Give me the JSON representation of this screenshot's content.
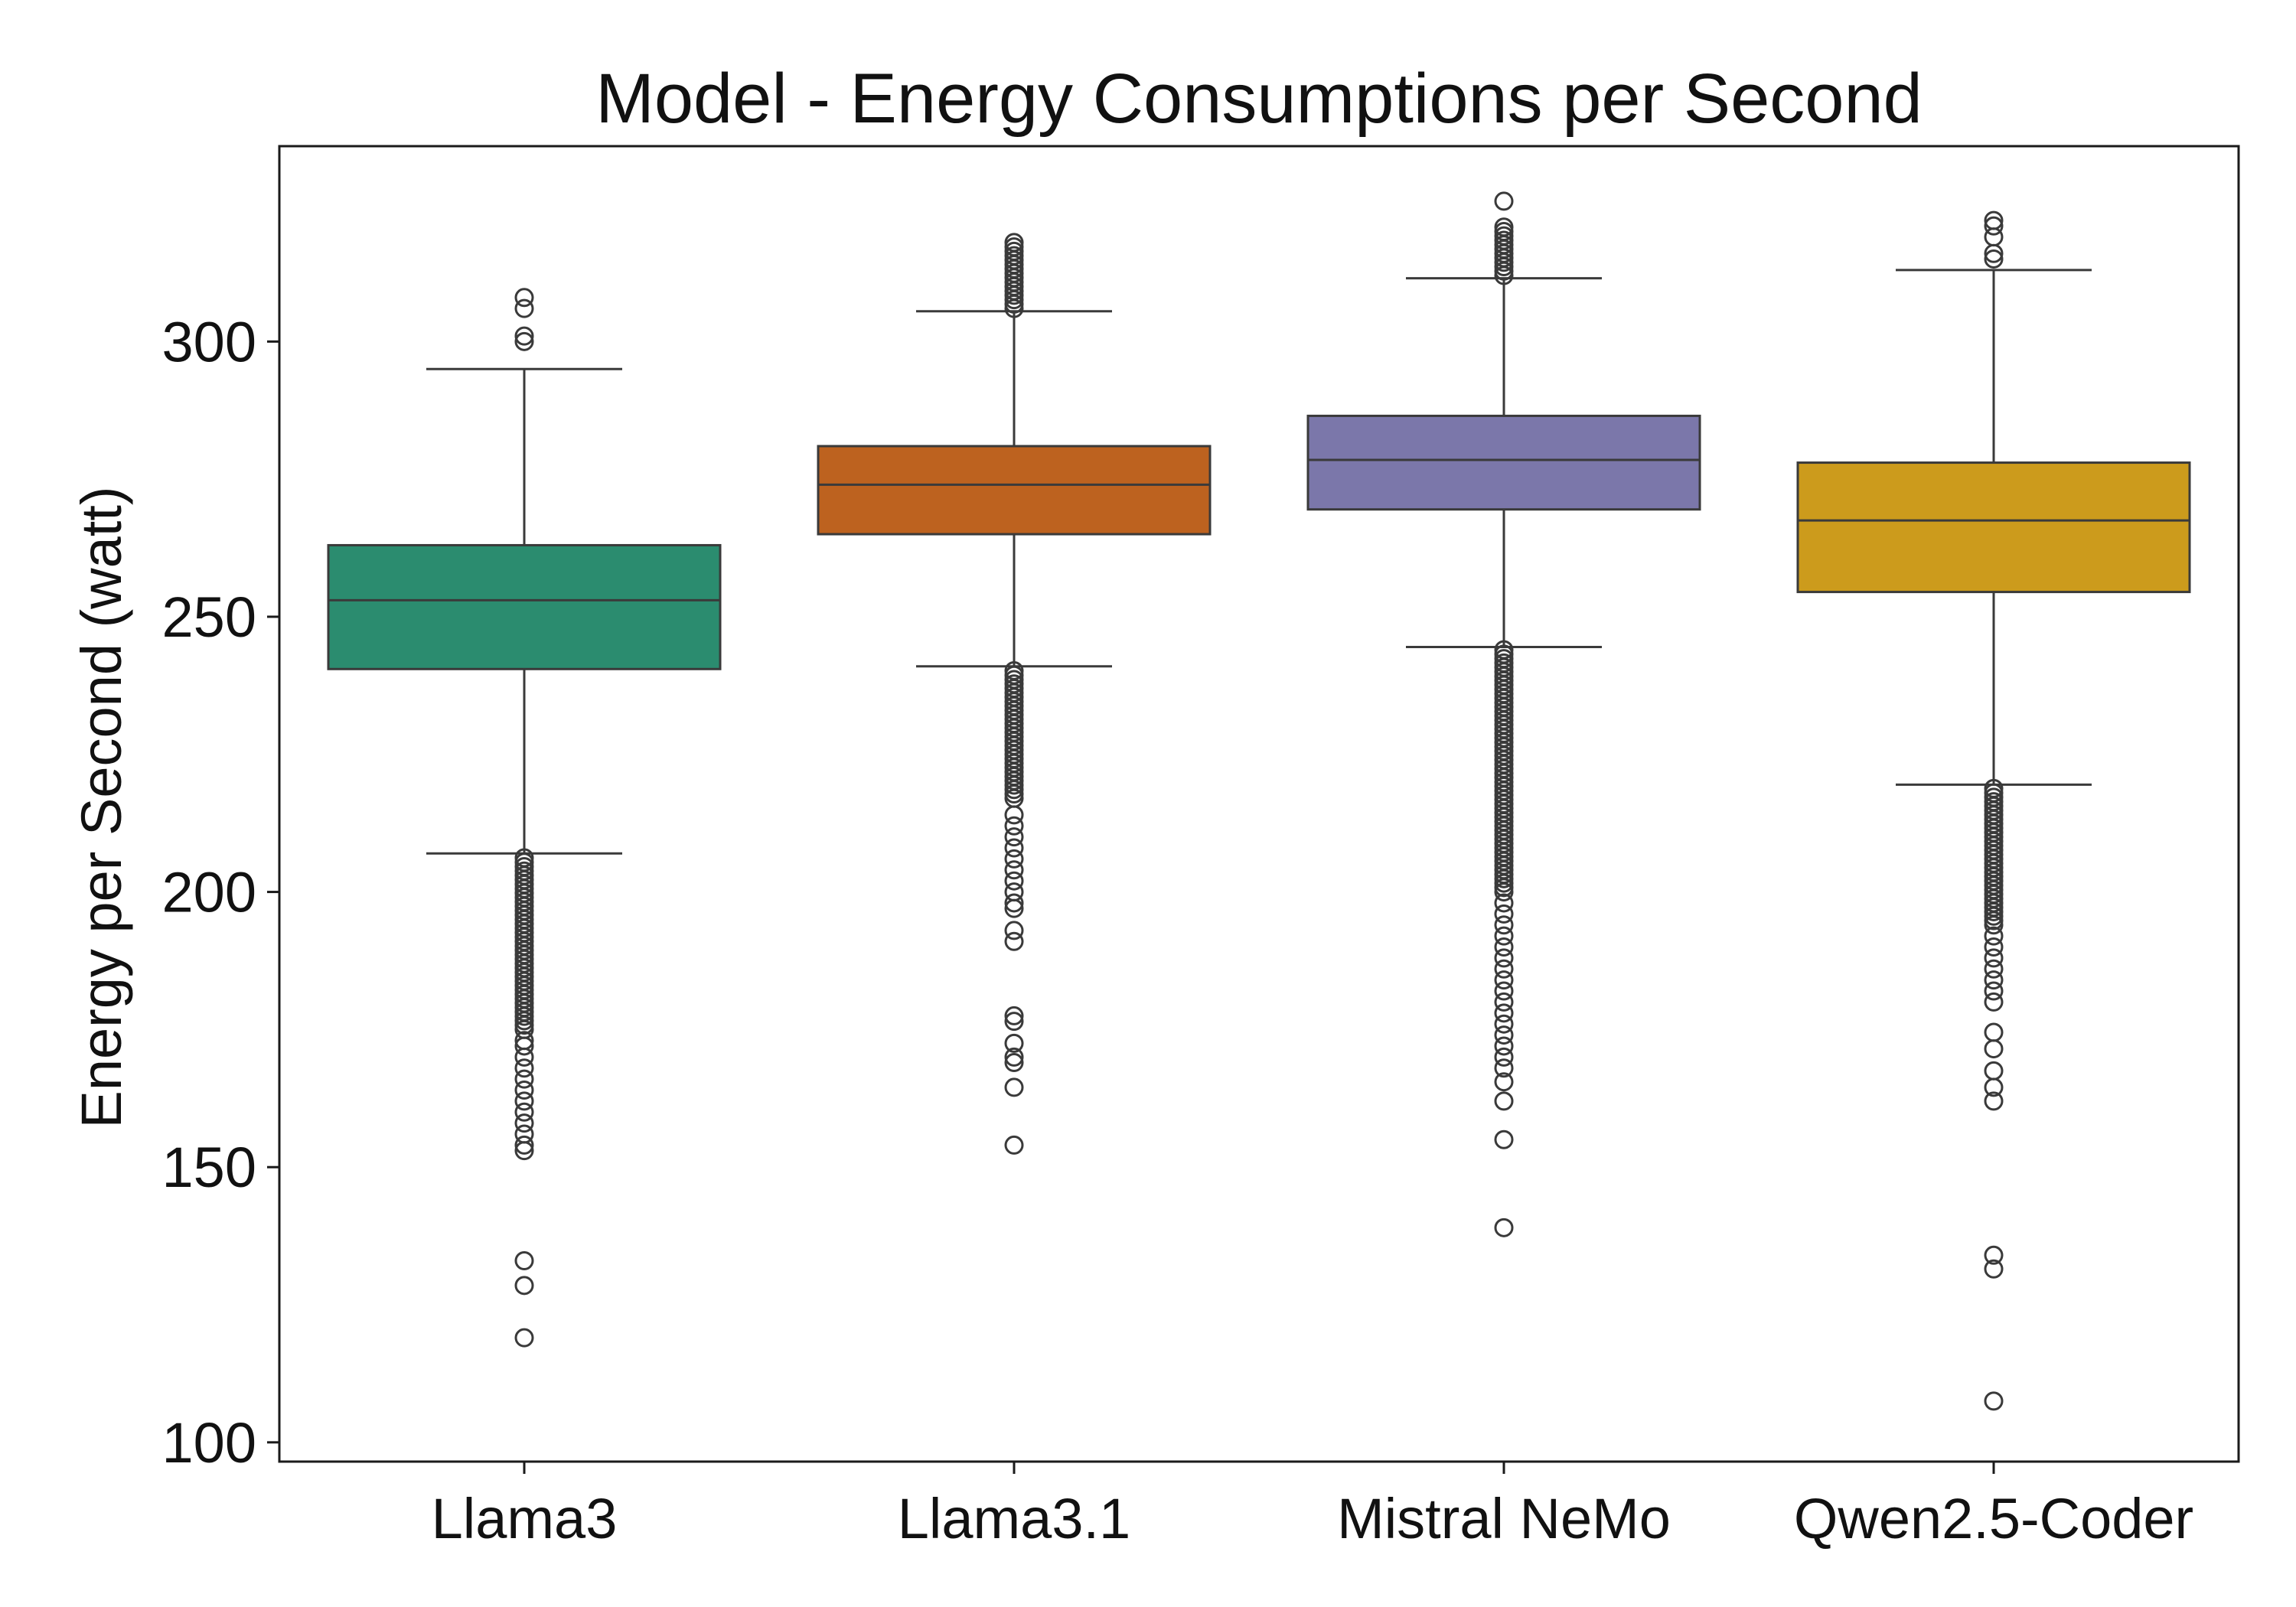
{
  "chart_data": {
    "type": "boxplot",
    "title": "Model - Energy Consumptions per Second",
    "xlabel": "",
    "ylabel": "Energy per Second (watt)",
    "ylim": [
      96.5,
      335.5
    ],
    "yticks": [
      100,
      150,
      200,
      250,
      300
    ],
    "grid": false,
    "legend": "none",
    "categories": [
      "Llama3",
      "Llama3.1",
      "Mistral NeMo",
      "Qwen2.5-Coder"
    ],
    "colors": [
      "#2b8c6f",
      "#bd621f",
      "#7b77aa",
      "#cc9b1c"
    ],
    "edge_color": "#3a3a3a",
    "series": [
      {
        "name": "Llama3",
        "whisker_low": 207,
        "q1": 240.5,
        "median": 253,
        "q3": 263,
        "whisker_high": 295,
        "outlier_band": [
          175,
          206.5
        ],
        "outliers": [
          308,
          306,
          301,
          300,
          173,
          172,
          170,
          168,
          166,
          164,
          162,
          160,
          158,
          156,
          154,
          153,
          133,
          128.5,
          119
        ]
      },
      {
        "name": "Llama3.1",
        "whisker_low": 241,
        "q1": 265,
        "median": 274,
        "q3": 281,
        "whisker_high": 305.5,
        "outlier_band": [
          217,
          240.5
        ],
        "outliers_high_band": [
          306,
          318
        ],
        "outliers": [
          214,
          212,
          210,
          208,
          206,
          204,
          202,
          200,
          198,
          197,
          193,
          191,
          177.5,
          176.5,
          172.5,
          170,
          169,
          164.5,
          154
        ]
      },
      {
        "name": "Mistral NeMo",
        "whisker_low": 244.5,
        "q1": 269.5,
        "median": 278.5,
        "q3": 286.5,
        "whisker_high": 311.5,
        "outlier_band": [
          200,
          244
        ],
        "outliers_high_band": [
          312,
          321
        ],
        "outliers": [
          325.5,
          198,
          196,
          194,
          192,
          190,
          188,
          186,
          184,
          182,
          180,
          178,
          176,
          174,
          172,
          170,
          168,
          165.5,
          162,
          155,
          139
        ]
      },
      {
        "name": "Qwen2.5-Coder",
        "whisker_low": 219.5,
        "q1": 254.5,
        "median": 267.5,
        "q3": 278,
        "whisker_high": 313,
        "outlier_band": [
          194,
          219
        ],
        "outliers": [
          322,
          321,
          319,
          316,
          315,
          192,
          190,
          188,
          186,
          184,
          182,
          180,
          174.5,
          171.5,
          167.5,
          164.5,
          162,
          134,
          131.5,
          107.5
        ]
      }
    ]
  }
}
